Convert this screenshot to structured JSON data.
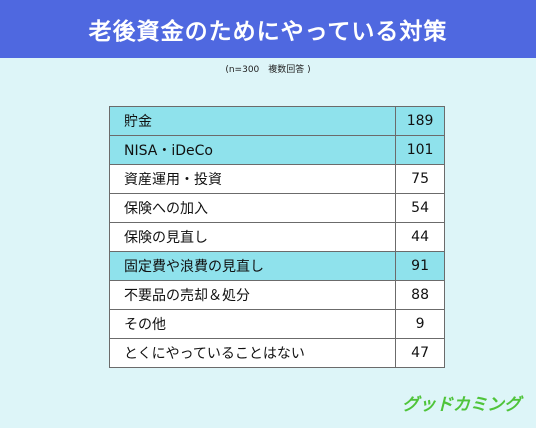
{
  "header": {
    "title": "老後資金のためにやっている対策"
  },
  "note": "(n=300　複数回答 )",
  "logo": "グッドカミング",
  "colors": {
    "header": "#4f68e0",
    "background": "#ddf5f8",
    "highlight": "#8fe2ec",
    "logo": "#4fc43a"
  },
  "chart_data": {
    "type": "table",
    "title": "老後資金のためにやっている対策",
    "categories": [
      "貯金",
      "NISA・iDeCo",
      "資産運用・投資",
      "保険への加入",
      "保険の見直し",
      "固定費や浪費の見直し",
      "不要品の売却＆処分",
      "その他",
      "とくにやっていることはない"
    ],
    "values": [
      189,
      101,
      75,
      54,
      44,
      91,
      88,
      9,
      47
    ],
    "highlighted": [
      "貯金",
      "NISA・iDeCo",
      "固定費や浪費の見直し"
    ]
  }
}
